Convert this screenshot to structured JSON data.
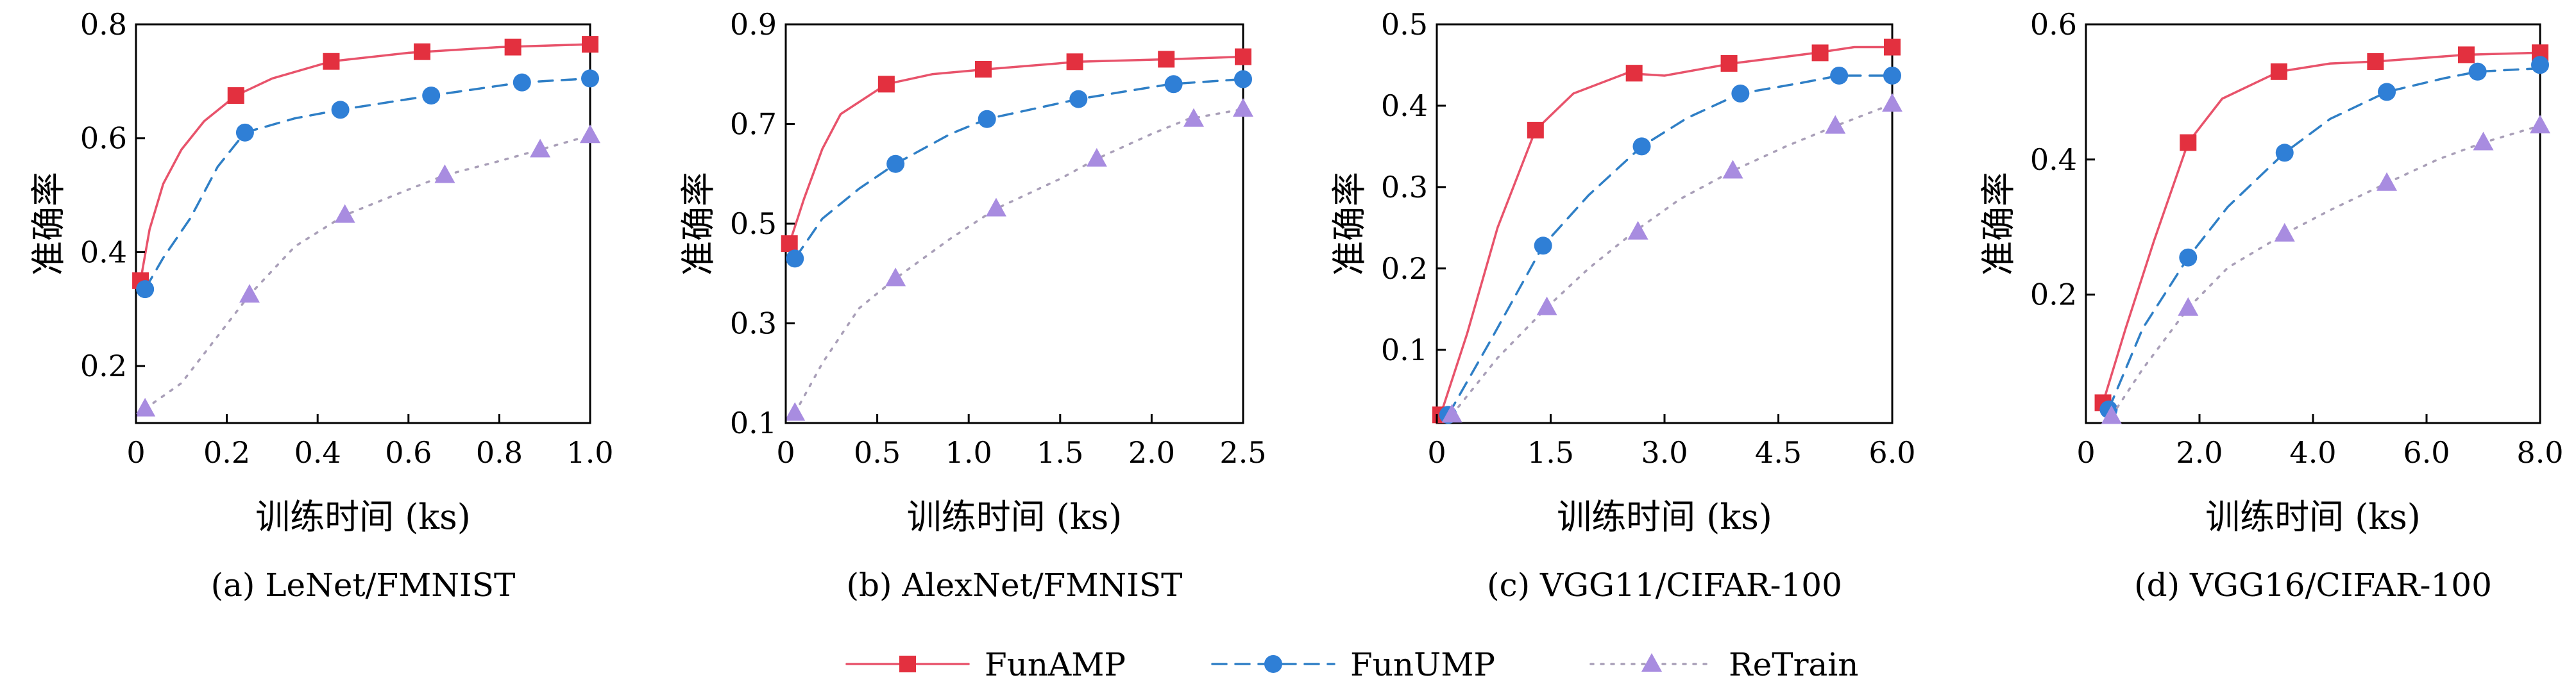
{
  "legend": [
    {
      "label": "FunAMP",
      "color": "#e8536b",
      "marker": "square",
      "dash": "solid",
      "marker_color": "#e3303f"
    },
    {
      "label": "FunUMP",
      "color": "#2f7fc6",
      "marker": "circle",
      "dash": "dashed",
      "marker_color": "#2f7fd6"
    },
    {
      "label": "ReTrain",
      "color": "#a99fb8",
      "marker": "triangle",
      "dash": "dotted",
      "marker_color": "#a88ce0"
    }
  ],
  "chart_data": [
    {
      "type": "line",
      "caption": "(a) LeNet/FMNIST",
      "xlabel": "训练时间 (ks)",
      "ylabel": "准确率",
      "xlim": [
        0,
        1.0
      ],
      "ylim": [
        0.1,
        0.8
      ],
      "xticks": [
        "0",
        "0.2",
        "0.4",
        "0.6",
        "0.8",
        "1.0"
      ],
      "xtick_values": [
        0,
        0.2,
        0.4,
        0.6,
        0.8,
        1.0
      ],
      "yticks": [
        "0.2",
        "0.4",
        "0.6",
        "0.8"
      ],
      "ytick_values": [
        0.2,
        0.4,
        0.6,
        0.8
      ],
      "series": [
        {
          "name": "FunAMP",
          "line": [
            [
              0.01,
              0.35
            ],
            [
              0.03,
              0.44
            ],
            [
              0.06,
              0.52
            ],
            [
              0.1,
              0.58
            ],
            [
              0.15,
              0.63
            ],
            [
              0.22,
              0.675
            ],
            [
              0.3,
              0.705
            ],
            [
              0.43,
              0.735
            ],
            [
              0.6,
              0.75
            ],
            [
              0.8,
              0.76
            ],
            [
              1.0,
              0.765
            ]
          ],
          "markers": [
            [
              0.01,
              0.35
            ],
            [
              0.22,
              0.675
            ],
            [
              0.43,
              0.735
            ],
            [
              0.63,
              0.752
            ],
            [
              0.83,
              0.76
            ],
            [
              1.0,
              0.765
            ]
          ]
        },
        {
          "name": "FunUMP",
          "line": [
            [
              0.02,
              0.335
            ],
            [
              0.06,
              0.39
            ],
            [
              0.12,
              0.46
            ],
            [
              0.18,
              0.55
            ],
            [
              0.24,
              0.61
            ],
            [
              0.35,
              0.635
            ],
            [
              0.45,
              0.65
            ],
            [
              0.65,
              0.675
            ],
            [
              0.85,
              0.698
            ],
            [
              1.0,
              0.705
            ]
          ],
          "markers": [
            [
              0.02,
              0.335
            ],
            [
              0.24,
              0.61
            ],
            [
              0.45,
              0.65
            ],
            [
              0.65,
              0.675
            ],
            [
              0.85,
              0.698
            ],
            [
              1.0,
              0.705
            ]
          ]
        },
        {
          "name": "ReTrain",
          "line": [
            [
              0.02,
              0.125
            ],
            [
              0.1,
              0.17
            ],
            [
              0.25,
              0.325
            ],
            [
              0.35,
              0.41
            ],
            [
              0.46,
              0.465
            ],
            [
              0.6,
              0.51
            ],
            [
              0.68,
              0.535
            ],
            [
              0.8,
              0.56
            ],
            [
              0.89,
              0.58
            ],
            [
              1.0,
              0.605
            ]
          ],
          "markers": [
            [
              0.02,
              0.125
            ],
            [
              0.25,
              0.325
            ],
            [
              0.46,
              0.465
            ],
            [
              0.68,
              0.535
            ],
            [
              0.89,
              0.58
            ],
            [
              1.0,
              0.605
            ]
          ]
        }
      ]
    },
    {
      "type": "line",
      "caption": "(b) AlexNet/FMNIST",
      "xlabel": "训练时间 (ks)",
      "ylabel": "准确率",
      "xlim": [
        0,
        2.5
      ],
      "ylim": [
        0.1,
        0.9
      ],
      "xticks": [
        "0",
        "0.5",
        "1.0",
        "1.5",
        "2.0",
        "2.5"
      ],
      "xtick_values": [
        0,
        0.5,
        1.0,
        1.5,
        2.0,
        2.5
      ],
      "yticks": [
        "0.1",
        "0.3",
        "0.5",
        "0.7",
        "0.9"
      ],
      "ytick_values": [
        0.1,
        0.3,
        0.5,
        0.7,
        0.9
      ],
      "series": [
        {
          "name": "FunAMP",
          "line": [
            [
              0.02,
              0.46
            ],
            [
              0.1,
              0.55
            ],
            [
              0.2,
              0.65
            ],
            [
              0.3,
              0.72
            ],
            [
              0.55,
              0.78
            ],
            [
              0.8,
              0.8
            ],
            [
              1.1,
              0.81
            ],
            [
              1.6,
              0.825
            ],
            [
              2.1,
              0.83
            ],
            [
              2.5,
              0.835
            ]
          ],
          "markers": [
            [
              0.02,
              0.46
            ],
            [
              0.55,
              0.78
            ],
            [
              1.08,
              0.81
            ],
            [
              1.58,
              0.825
            ],
            [
              2.08,
              0.83
            ],
            [
              2.5,
              0.835
            ]
          ]
        },
        {
          "name": "FunUMP",
          "line": [
            [
              0.05,
              0.43
            ],
            [
              0.2,
              0.51
            ],
            [
              0.4,
              0.57
            ],
            [
              0.6,
              0.62
            ],
            [
              0.9,
              0.68
            ],
            [
              1.1,
              0.71
            ],
            [
              1.6,
              0.75
            ],
            [
              2.1,
              0.78
            ],
            [
              2.5,
              0.79
            ]
          ],
          "markers": [
            [
              0.05,
              0.43
            ],
            [
              0.6,
              0.62
            ],
            [
              1.1,
              0.71
            ],
            [
              1.6,
              0.75
            ],
            [
              2.12,
              0.78
            ],
            [
              2.5,
              0.79
            ]
          ]
        },
        {
          "name": "ReTrain",
          "line": [
            [
              0.05,
              0.12
            ],
            [
              0.2,
              0.22
            ],
            [
              0.4,
              0.33
            ],
            [
              0.6,
              0.39
            ],
            [
              0.9,
              0.47
            ],
            [
              1.15,
              0.53
            ],
            [
              1.5,
              0.59
            ],
            [
              1.7,
              0.63
            ],
            [
              2.0,
              0.68
            ],
            [
              2.2,
              0.71
            ],
            [
              2.5,
              0.73
            ]
          ],
          "markers": [
            [
              0.05,
              0.12
            ],
            [
              0.6,
              0.39
            ],
            [
              1.15,
              0.53
            ],
            [
              1.7,
              0.63
            ],
            [
              2.23,
              0.71
            ],
            [
              2.5,
              0.73
            ]
          ]
        }
      ]
    },
    {
      "type": "line",
      "caption": "(c) VGG11/CIFAR-100",
      "xlabel": "训练时间 (ks)",
      "ylabel": "准确率",
      "xlim": [
        0,
        6.0
      ],
      "ylim": [
        0.01,
        0.5
      ],
      "xticks": [
        "0",
        "1.5",
        "3.0",
        "4.5",
        "6.0"
      ],
      "xtick_values": [
        0,
        1.5,
        3.0,
        4.5,
        6.0
      ],
      "yticks": [
        "0.1",
        "0.2",
        "0.3",
        "0.4",
        "0.5"
      ],
      "ytick_values": [
        0.1,
        0.2,
        0.3,
        0.4,
        0.5
      ],
      "series": [
        {
          "name": "FunAMP",
          "line": [
            [
              0.05,
              0.02
            ],
            [
              0.4,
              0.12
            ],
            [
              0.8,
              0.25
            ],
            [
              1.3,
              0.37
            ],
            [
              1.8,
              0.415
            ],
            [
              2.5,
              0.44
            ],
            [
              3.0,
              0.437
            ],
            [
              3.9,
              0.452
            ],
            [
              5.0,
              0.465
            ],
            [
              5.5,
              0.472
            ],
            [
              6.0,
              0.472
            ]
          ],
          "markers": [
            [
              0.05,
              0.02
            ],
            [
              1.3,
              0.37
            ],
            [
              2.6,
              0.44
            ],
            [
              3.85,
              0.452
            ],
            [
              5.05,
              0.465
            ],
            [
              6.0,
              0.472
            ]
          ]
        },
        {
          "name": "FunUMP",
          "line": [
            [
              0.15,
              0.02
            ],
            [
              0.7,
              0.11
            ],
            [
              1.4,
              0.228
            ],
            [
              2.0,
              0.29
            ],
            [
              2.7,
              0.35
            ],
            [
              3.3,
              0.385
            ],
            [
              4.0,
              0.415
            ],
            [
              4.8,
              0.428
            ],
            [
              5.3,
              0.437
            ],
            [
              6.0,
              0.437
            ]
          ],
          "markers": [
            [
              0.15,
              0.02
            ],
            [
              1.4,
              0.228
            ],
            [
              2.7,
              0.35
            ],
            [
              4.0,
              0.415
            ],
            [
              5.3,
              0.437
            ],
            [
              6.0,
              0.437
            ]
          ]
        },
        {
          "name": "ReTrain",
          "line": [
            [
              0.2,
              0.02
            ],
            [
              0.8,
              0.09
            ],
            [
              1.45,
              0.152
            ],
            [
              2.0,
              0.2
            ],
            [
              2.6,
              0.245
            ],
            [
              3.2,
              0.285
            ],
            [
              3.9,
              0.32
            ],
            [
              4.6,
              0.35
            ],
            [
              5.25,
              0.375
            ],
            [
              6.0,
              0.402
            ]
          ],
          "markers": [
            [
              0.2,
              0.02
            ],
            [
              1.45,
              0.152
            ],
            [
              2.65,
              0.245
            ],
            [
              3.9,
              0.32
            ],
            [
              5.25,
              0.375
            ],
            [
              6.0,
              0.402
            ]
          ]
        }
      ]
    },
    {
      "type": "line",
      "caption": "(d) VGG16/CIFAR-100",
      "xlabel": "训练时间 (ks)",
      "ylabel": "准确率",
      "xlim": [
        0,
        8.0
      ],
      "ylim": [
        0.01,
        0.6
      ],
      "xticks": [
        "0",
        "2.0",
        "4.0",
        "6.0",
        "8.0"
      ],
      "xtick_values": [
        0,
        2.0,
        4.0,
        6.0,
        8.0
      ],
      "yticks": [
        "0.2",
        "0.4",
        "0.6"
      ],
      "ytick_values": [
        0.2,
        0.4,
        0.6
      ],
      "series": [
        {
          "name": "FunAMP",
          "line": [
            [
              0.3,
              0.04
            ],
            [
              0.7,
              0.15
            ],
            [
              1.2,
              0.28
            ],
            [
              1.8,
              0.425
            ],
            [
              2.4,
              0.49
            ],
            [
              3.4,
              0.53
            ],
            [
              4.3,
              0.542
            ],
            [
              5.1,
              0.545
            ],
            [
              6.7,
              0.555
            ],
            [
              8.0,
              0.558
            ]
          ],
          "markers": [
            [
              0.3,
              0.04
            ],
            [
              1.8,
              0.425
            ],
            [
              3.4,
              0.53
            ],
            [
              5.1,
              0.545
            ],
            [
              6.7,
              0.555
            ],
            [
              8.0,
              0.558
            ]
          ]
        },
        {
          "name": "FunUMP",
          "line": [
            [
              0.4,
              0.03
            ],
            [
              1.0,
              0.15
            ],
            [
              1.8,
              0.255
            ],
            [
              2.5,
              0.33
            ],
            [
              3.5,
              0.41
            ],
            [
              4.3,
              0.46
            ],
            [
              5.3,
              0.5
            ],
            [
              6.3,
              0.52
            ],
            [
              6.9,
              0.53
            ],
            [
              8.0,
              0.535
            ]
          ],
          "markers": [
            [
              0.4,
              0.03
            ],
            [
              1.8,
              0.255
            ],
            [
              3.5,
              0.41
            ],
            [
              5.3,
              0.5
            ],
            [
              6.9,
              0.53
            ],
            [
              8.0,
              0.54
            ]
          ]
        },
        {
          "name": "ReTrain",
          "line": [
            [
              0.45,
              0.02
            ],
            [
              1.0,
              0.09
            ],
            [
              1.8,
              0.18
            ],
            [
              2.5,
              0.24
            ],
            [
              3.5,
              0.29
            ],
            [
              4.3,
              0.325
            ],
            [
              5.3,
              0.365
            ],
            [
              6.2,
              0.4
            ],
            [
              7.0,
              0.425
            ],
            [
              8.0,
              0.45
            ]
          ],
          "markers": [
            [
              0.45,
              0.02
            ],
            [
              1.8,
              0.18
            ],
            [
              3.5,
              0.29
            ],
            [
              5.3,
              0.365
            ],
            [
              7.0,
              0.425
            ],
            [
              8.0,
              0.45
            ]
          ]
        }
      ]
    }
  ]
}
